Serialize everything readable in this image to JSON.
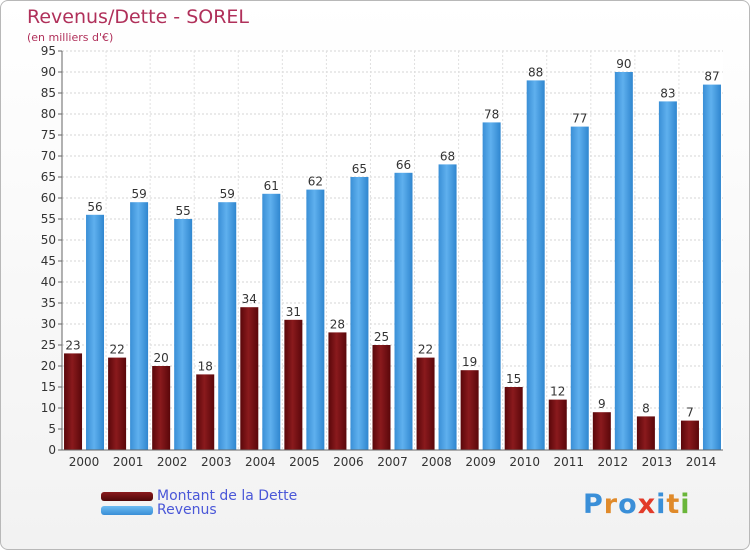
{
  "header": {
    "title": "Revenus/Dette - SOREL",
    "subtitle": "(en milliers d'€)"
  },
  "colors": {
    "dette": "#7a0f12",
    "revenus": "#4a9fe0",
    "title": "#b0305a",
    "legend_text": "#4a57d8"
  },
  "legend": {
    "items": [
      {
        "label": "Montant de la Dette",
        "color": "#7a0f12"
      },
      {
        "label": "Revenus",
        "color": "#4a9fe0"
      }
    ]
  },
  "logo": {
    "text": "Proxiti",
    "letters": [
      {
        "ch": "P",
        "color": "#3a8fd8"
      },
      {
        "ch": "r",
        "color": "#e08a2a"
      },
      {
        "ch": "o",
        "color": "#3a8fd8"
      },
      {
        "ch": "x",
        "color": "#e23b2a"
      },
      {
        "ch": "i",
        "color": "#3a8fd8"
      },
      {
        "ch": "t",
        "color": "#e08a2a"
      },
      {
        "ch": "i",
        "color": "#6ab63a"
      }
    ]
  },
  "chart_data": {
    "type": "bar",
    "title": "Revenus/Dette - SOREL",
    "subtitle": "(en milliers d'€)",
    "categories": [
      "2000",
      "2001",
      "2002",
      "2003",
      "2004",
      "2005",
      "2006",
      "2007",
      "2008",
      "2009",
      "2010",
      "2011",
      "2012",
      "2013",
      "2014"
    ],
    "series": [
      {
        "name": "Montant de la Dette",
        "color": "#7a0f12",
        "values": [
          23,
          22,
          20,
          18,
          34,
          31,
          28,
          25,
          22,
          19,
          15,
          12,
          9,
          8,
          7
        ]
      },
      {
        "name": "Revenus",
        "color": "#4a9fe0",
        "values": [
          56,
          59,
          55,
          59,
          61,
          62,
          65,
          66,
          68,
          78,
          88,
          77,
          90,
          83,
          87
        ]
      }
    ],
    "ylim": [
      0,
      95
    ],
    "ytick_step": 5,
    "grid": true,
    "legend_position": "bottom-left"
  }
}
